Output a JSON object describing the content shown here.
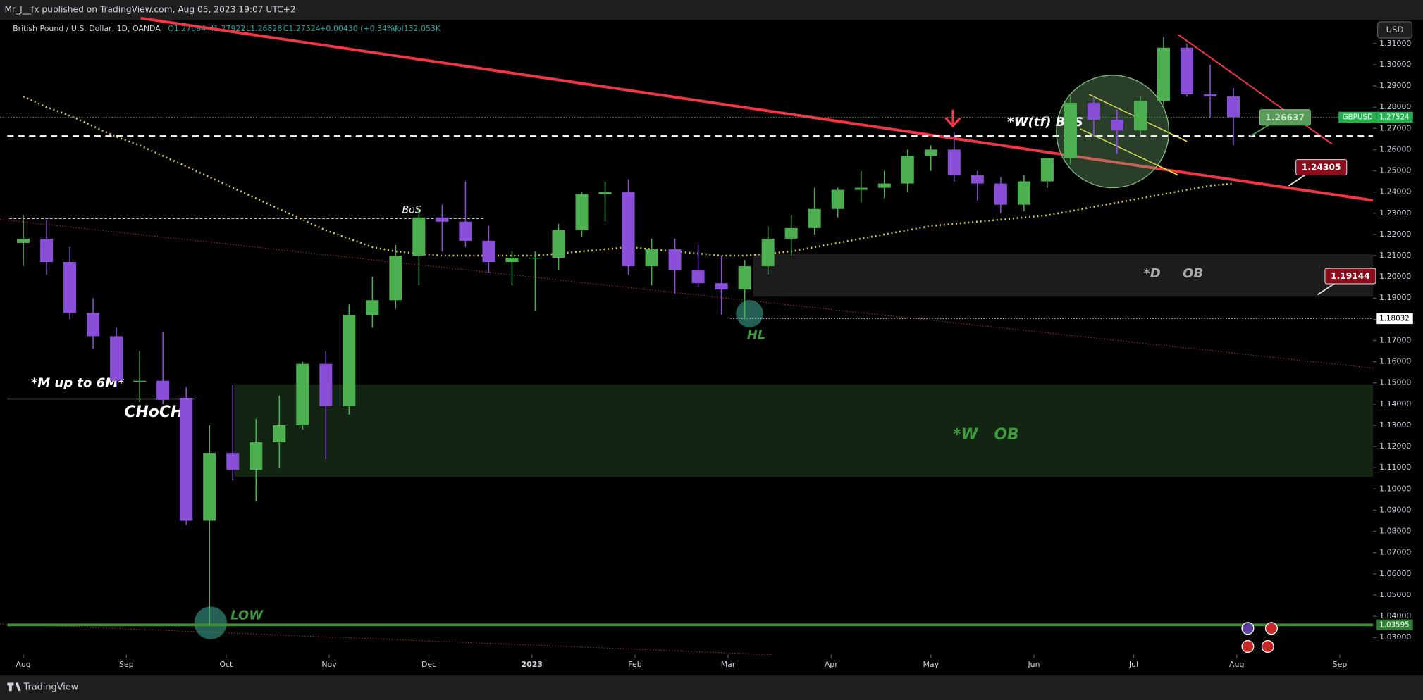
{
  "header": {
    "publisher": "Mr_J__fx published on TradingView.com, Aug 05, 2023 19:07 UTC+2",
    "currency": "USD",
    "footer": "TradingView"
  },
  "legend": {
    "symbol": "British Pound / U.S. Dollar, 1D, OANDA",
    "open": "O1.27094",
    "high": "H1.27922",
    "low": "L1.26828",
    "close": "C1.27524",
    "change": "+0.00430 (+0.34%)",
    "volume": "Vol132.053K"
  },
  "chart_data": {
    "type": "candlestick",
    "up_color": "#4caf50",
    "down_color": "#8a4fd8",
    "x": [
      0,
      7,
      14,
      21,
      28,
      35,
      42,
      49,
      56,
      63,
      70,
      77,
      84,
      91,
      98,
      105,
      112,
      119,
      126,
      133,
      140,
      147,
      154,
      161,
      168,
      175,
      182,
      189,
      196,
      203,
      210,
      217,
      224,
      231,
      238,
      245,
      252,
      259,
      266,
      273,
      280,
      287,
      294,
      301,
      308,
      315,
      322,
      329,
      336,
      343,
      350,
      357,
      364
    ],
    "open": [
      1.216,
      1.218,
      1.207,
      1.183,
      1.172,
      1.151,
      1.151,
      1.143,
      1.085,
      1.117,
      1.109,
      1.122,
      1.13,
      1.159,
      1.139,
      1.182,
      1.189,
      1.21,
      1.228,
      1.226,
      1.217,
      1.207,
      1.209,
      1.209,
      1.222,
      1.239,
      1.24,
      1.205,
      1.213,
      1.203,
      1.197,
      1.194,
      1.205,
      1.218,
      1.223,
      1.232,
      1.241,
      1.242,
      1.244,
      1.257,
      1.26,
      1.248,
      1.244,
      1.234,
      1.245,
      1.256,
      1.282,
      1.274,
      1.269,
      1.283,
      1.308,
      1.286,
      1.285
    ],
    "high": [
      1.229,
      1.227,
      1.214,
      1.19,
      1.176,
      1.165,
      1.174,
      1.148,
      1.13,
      1.149,
      1.133,
      1.144,
      1.16,
      1.165,
      1.187,
      1.2,
      1.215,
      1.232,
      1.234,
      1.245,
      1.224,
      1.212,
      1.212,
      1.225,
      1.24,
      1.245,
      1.246,
      1.218,
      1.218,
      1.215,
      1.21,
      1.208,
      1.224,
      1.229,
      1.242,
      1.242,
      1.25,
      1.25,
      1.26,
      1.262,
      1.268,
      1.25,
      1.247,
      1.248,
      1.256,
      1.285,
      1.285,
      1.279,
      1.285,
      1.313,
      1.31,
      1.3,
      1.289
    ],
    "low": [
      1.205,
      1.201,
      1.18,
      1.166,
      1.148,
      1.141,
      1.14,
      1.083,
      1.0359,
      1.104,
      1.094,
      1.11,
      1.128,
      1.114,
      1.135,
      1.176,
      1.185,
      1.196,
      1.212,
      1.214,
      1.202,
      1.196,
      1.184,
      1.203,
      1.219,
      1.226,
      1.201,
      1.196,
      1.192,
      1.195,
      1.182,
      1.18,
      1.201,
      1.21,
      1.22,
      1.228,
      1.235,
      1.237,
      1.24,
      1.25,
      1.245,
      1.236,
      1.23,
      1.231,
      1.242,
      1.253,
      1.266,
      1.258,
      1.266,
      1.281,
      1.285,
      1.275,
      1.262
    ],
    "close": [
      1.218,
      1.207,
      1.183,
      1.172,
      1.151,
      1.151,
      1.142,
      1.085,
      1.117,
      1.109,
      1.122,
      1.13,
      1.159,
      1.139,
      1.182,
      1.189,
      1.21,
      1.228,
      1.226,
      1.217,
      1.207,
      1.209,
      1.209,
      1.222,
      1.239,
      1.24,
      1.205,
      1.213,
      1.203,
      1.197,
      1.194,
      1.205,
      1.218,
      1.223,
      1.232,
      1.241,
      1.242,
      1.244,
      1.257,
      1.26,
      1.248,
      1.244,
      1.234,
      1.245,
      1.256,
      1.282,
      1.274,
      1.269,
      1.283,
      1.308,
      1.286,
      1.285,
      1.27524
    ],
    "moving_average": {
      "color": "#d4c94a",
      "values": [
        1.285,
        1.28,
        1.276,
        1.271,
        1.266,
        1.262,
        1.257,
        1.252,
        1.247,
        1.242,
        1.237,
        1.232,
        1.227,
        1.222,
        1.218,
        1.214,
        1.212,
        1.211,
        1.21,
        1.21,
        1.21,
        1.21,
        1.21,
        1.211,
        1.212,
        1.213,
        1.214,
        1.213,
        1.212,
        1.211,
        1.21,
        1.21,
        1.211,
        1.212,
        1.214,
        1.216,
        1.218,
        1.22,
        1.222,
        1.224,
        1.225,
        1.226,
        1.227,
        1.228,
        1.229,
        1.231,
        1.233,
        1.235,
        1.237,
        1.239,
        1.241,
        1.243,
        1.244
      ]
    },
    "xlim": [
      -7,
      406
    ],
    "xticks": [
      {
        "value": 0,
        "label": "Aug"
      },
      {
        "value": 31,
        "label": "Sep"
      },
      {
        "value": 61,
        "label": "Oct"
      },
      {
        "value": 92,
        "label": "Nov"
      },
      {
        "value": 122,
        "label": "Dec"
      },
      {
        "value": 153,
        "label": "2023"
      },
      {
        "value": 184,
        "label": "Feb"
      },
      {
        "value": 212,
        "label": "Mar"
      },
      {
        "value": 243,
        "label": "Apr"
      },
      {
        "value": 273,
        "label": "May"
      },
      {
        "value": 304,
        "label": "Jun"
      },
      {
        "value": 334,
        "label": "Jul"
      },
      {
        "value": 365,
        "label": "Aug"
      },
      {
        "value": 396,
        "label": "Sep"
      }
    ],
    "ylim": [
      1.0219,
      1.3211
    ],
    "yticks": [
      {
        "value": 1.03,
        "label": "1.03000"
      },
      {
        "value": 1.04,
        "label": "1.04000"
      },
      {
        "value": 1.05,
        "label": "1.05000"
      },
      {
        "value": 1.06,
        "label": "1.06000"
      },
      {
        "value": 1.07,
        "label": "1.07000"
      },
      {
        "value": 1.08,
        "label": "1.08000"
      },
      {
        "value": 1.09,
        "label": "1.09000"
      },
      {
        "value": 1.1,
        "label": "1.10000"
      },
      {
        "value": 1.11,
        "label": "1.11000"
      },
      {
        "value": 1.12,
        "label": "1.12000"
      },
      {
        "value": 1.13,
        "label": "1.13000"
      },
      {
        "value": 1.14,
        "label": "1.14000"
      },
      {
        "value": 1.15,
        "label": "1.15000"
      },
      {
        "value": 1.16,
        "label": "1.16000"
      },
      {
        "value": 1.17,
        "label": "1.17000"
      },
      {
        "value": 1.18,
        "label": "1.18000"
      },
      {
        "value": 1.19,
        "label": "1.19000"
      },
      {
        "value": 1.2,
        "label": "1.20000"
      },
      {
        "value": 1.21,
        "label": "1.21000"
      },
      {
        "value": 1.22,
        "label": "1.22000"
      },
      {
        "value": 1.23,
        "label": "1.23000"
      },
      {
        "value": 1.24,
        "label": "1.24000"
      },
      {
        "value": 1.25,
        "label": "1.25000"
      },
      {
        "value": 1.26,
        "label": "1.26000"
      },
      {
        "value": 1.27,
        "label": "1.27000"
      },
      {
        "value": 1.28,
        "label": "1.28000"
      },
      {
        "value": 1.29,
        "label": "1.29000"
      },
      {
        "value": 1.3,
        "label": "1.30000"
      },
      {
        "value": 1.31,
        "label": "1.31000"
      }
    ],
    "last_price": {
      "symbol": "GBPUSD",
      "value": 1.27524
    },
    "levels": {
      "low": 1.03595,
      "higher_low": 1.18032,
      "weekly_bos": 1.26637
    },
    "callouts": [
      1.26637,
      1.24305,
      1.19144
    ],
    "annotations": {
      "bos": "BoS",
      "weekly_bos": "*W(tf) BoS",
      "monthly": "*M up to 6M*",
      "choch": "CHoCH",
      "daily_ob": "*D     OB",
      "weekly_ob": "*W   OB",
      "higher_low": "HL",
      "low": "LOW"
    }
  }
}
